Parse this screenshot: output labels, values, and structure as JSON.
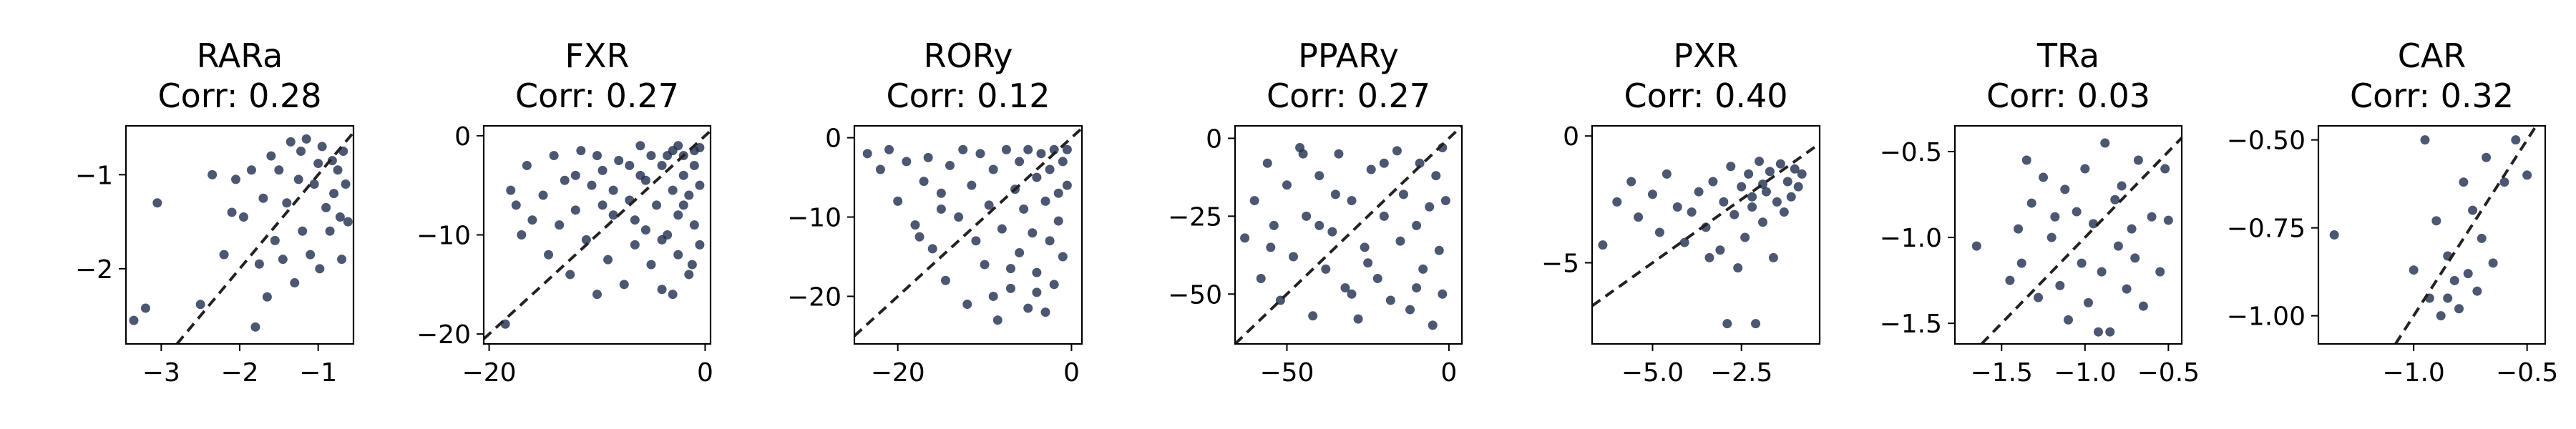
{
  "figure": {
    "background": "#ffffff",
    "point_color": "#1f2d4f",
    "diagonal_color": "#222222"
  },
  "chart_data": [
    {
      "type": "scatter",
      "title": "RARa",
      "subtitle": "Corr: 0.28",
      "xlim": [
        -3.45,
        -0.55
      ],
      "ylim": [
        -2.8,
        -0.48
      ],
      "xticks": [
        -3,
        -2,
        -1
      ],
      "yticks": [
        -2,
        -1
      ],
      "diagonal": true,
      "points": [
        [
          -3.35,
          -2.55
        ],
        [
          -3.2,
          -2.42
        ],
        [
          -3.05,
          -1.3
        ],
        [
          -2.5,
          -2.38
        ],
        [
          -2.35,
          -1.0
        ],
        [
          -2.2,
          -1.85
        ],
        [
          -2.1,
          -1.4
        ],
        [
          -2.05,
          -1.05
        ],
        [
          -1.95,
          -1.45
        ],
        [
          -1.85,
          -0.95
        ],
        [
          -1.8,
          -2.62
        ],
        [
          -1.75,
          -1.95
        ],
        [
          -1.7,
          -1.25
        ],
        [
          -1.65,
          -2.3
        ],
        [
          -1.6,
          -0.8
        ],
        [
          -1.55,
          -1.7
        ],
        [
          -1.5,
          -0.95
        ],
        [
          -1.45,
          -1.9
        ],
        [
          -1.4,
          -1.3
        ],
        [
          -1.35,
          -0.65
        ],
        [
          -1.3,
          -2.15
        ],
        [
          -1.25,
          -1.05
        ],
        [
          -1.22,
          -0.75
        ],
        [
          -1.2,
          -1.6
        ],
        [
          -1.15,
          -0.62
        ],
        [
          -1.1,
          -1.85
        ],
        [
          -1.05,
          -1.1
        ],
        [
          -1.0,
          -0.88
        ],
        [
          -0.98,
          -2.0
        ],
        [
          -0.95,
          -0.7
        ],
        [
          -0.9,
          -1.35
        ],
        [
          -0.85,
          -1.6
        ],
        [
          -0.82,
          -0.85
        ],
        [
          -0.8,
          -1.2
        ],
        [
          -0.75,
          -0.95
        ],
        [
          -0.72,
          -1.45
        ],
        [
          -0.7,
          -1.9
        ],
        [
          -0.68,
          -0.75
        ],
        [
          -0.65,
          -1.1
        ],
        [
          -0.62,
          -1.5
        ]
      ]
    },
    {
      "type": "scatter",
      "title": "FXR",
      "subtitle": "Corr: 0.27",
      "xlim": [
        -20.5,
        0.5
      ],
      "ylim": [
        -21,
        1
      ],
      "xticks": [
        -20,
        0
      ],
      "yticks": [
        -20,
        -10,
        0
      ],
      "diagonal": true,
      "points": [
        [
          -18.5,
          -19
        ],
        [
          -18,
          -5.5
        ],
        [
          -17.5,
          -7
        ],
        [
          -17,
          -10
        ],
        [
          -16.5,
          -3
        ],
        [
          -16,
          -8.5
        ],
        [
          -15,
          -6
        ],
        [
          -14.5,
          -12
        ],
        [
          -14,
          -2
        ],
        [
          -13.5,
          -9
        ],
        [
          -13,
          -4.5
        ],
        [
          -12.5,
          -14
        ],
        [
          -12,
          -7.5
        ],
        [
          -11.5,
          -1.5
        ],
        [
          -11,
          -10.5
        ],
        [
          -10.5,
          -5
        ],
        [
          -10,
          -16
        ],
        [
          -9.5,
          -3.5
        ],
        [
          -9,
          -12.5
        ],
        [
          -8.5,
          -8
        ],
        [
          -8,
          -2.5
        ],
        [
          -7.5,
          -15
        ],
        [
          -7,
          -6.5
        ],
        [
          -6.5,
          -11
        ],
        [
          -6,
          -1
        ],
        [
          -6,
          -4
        ],
        [
          -5.5,
          -9.5
        ],
        [
          -5,
          -13
        ],
        [
          -5,
          -2
        ],
        [
          -4.5,
          -7
        ],
        [
          -4,
          -15.5
        ],
        [
          -4,
          -3
        ],
        [
          -3.5,
          -10
        ],
        [
          -3,
          -5.5
        ],
        [
          -3,
          -1.5
        ],
        [
          -2.5,
          -12
        ],
        [
          -2.5,
          -8
        ],
        [
          -2,
          -4
        ],
        [
          -2,
          -2
        ],
        [
          -1.5,
          -14
        ],
        [
          -1.5,
          -6
        ],
        [
          -1,
          -9
        ],
        [
          -1,
          -3
        ],
        [
          -1,
          -1.5
        ],
        [
          -0.5,
          -11
        ],
        [
          -0.5,
          -5
        ],
        [
          -0.5,
          -1.2
        ],
        [
          -3.5,
          -2
        ],
        [
          -5.5,
          -4.5
        ],
        [
          -7,
          -3
        ],
        [
          -8.5,
          -5.5
        ],
        [
          -9.5,
          -7
        ],
        [
          -2,
          -7
        ],
        [
          -4,
          -10.5
        ],
        [
          -1.2,
          -13
        ],
        [
          -6.5,
          -8.5
        ],
        [
          -3,
          -16
        ],
        [
          -10,
          -2
        ],
        [
          -12,
          -4
        ],
        [
          -2.5,
          -1
        ]
      ]
    },
    {
      "type": "scatter",
      "title": "RORy",
      "subtitle": "Corr: 0.12",
      "xlim": [
        -25,
        1.2
      ],
      "ylim": [
        -26,
        1.5
      ],
      "xticks": [
        -20,
        0
      ],
      "yticks": [
        -20,
        -10,
        0
      ],
      "diagonal": true,
      "points": [
        [
          -23.5,
          -2
        ],
        [
          -22,
          -4
        ],
        [
          -21,
          -1.5
        ],
        [
          -20,
          -8
        ],
        [
          -19,
          -3
        ],
        [
          -18,
          -11
        ],
        [
          -17,
          -5.5
        ],
        [
          -16.5,
          -2.5
        ],
        [
          -16,
          -14
        ],
        [
          -15,
          -7
        ],
        [
          -14.5,
          -18
        ],
        [
          -14,
          -3.5
        ],
        [
          -13,
          -10
        ],
        [
          -12.5,
          -1.5
        ],
        [
          -12,
          -21
        ],
        [
          -11.5,
          -6
        ],
        [
          -11,
          -13
        ],
        [
          -10.5,
          -2
        ],
        [
          -10,
          -16
        ],
        [
          -9.5,
          -8.5
        ],
        [
          -9,
          -4
        ],
        [
          -8.5,
          -23
        ],
        [
          -8,
          -11.5
        ],
        [
          -7.5,
          -1.5
        ],
        [
          -7,
          -19
        ],
        [
          -6.5,
          -6.5
        ],
        [
          -6,
          -14.5
        ],
        [
          -6,
          -3
        ],
        [
          -5.5,
          -9
        ],
        [
          -5,
          -21.5
        ],
        [
          -5,
          -1.5
        ],
        [
          -4.5,
          -12
        ],
        [
          -4,
          -5
        ],
        [
          -4,
          -17
        ],
        [
          -3.5,
          -2
        ],
        [
          -3,
          -8
        ],
        [
          -3,
          -22
        ],
        [
          -2.5,
          -13
        ],
        [
          -2.5,
          -4
        ],
        [
          -2,
          -1.5
        ],
        [
          -2,
          -18.5
        ],
        [
          -1.5,
          -7
        ],
        [
          -1.5,
          -10.5
        ],
        [
          -1,
          -3
        ],
        [
          -1,
          -15
        ],
        [
          -0.5,
          -1.5
        ],
        [
          -0.5,
          -6
        ],
        [
          -15,
          -9
        ],
        [
          -17.5,
          -12.5
        ],
        [
          -9,
          -20
        ],
        [
          -4,
          -19.5
        ],
        [
          -7,
          -16.5
        ]
      ]
    },
    {
      "type": "scatter",
      "title": "PPARy",
      "subtitle": "Corr: 0.27",
      "xlim": [
        -66,
        4
      ],
      "ylim": [
        -66,
        4
      ],
      "xticks": [
        -50,
        0
      ],
      "yticks": [
        -50,
        -25,
        0
      ],
      "diagonal": true,
      "points": [
        [
          -63,
          -32
        ],
        [
          -60,
          -20
        ],
        [
          -58,
          -45
        ],
        [
          -56,
          -8
        ],
        [
          -54,
          -28
        ],
        [
          -52,
          -52
        ],
        [
          -50,
          -15
        ],
        [
          -48,
          -38
        ],
        [
          -46,
          -3
        ],
        [
          -44,
          -25
        ],
        [
          -42,
          -57
        ],
        [
          -40,
          -12
        ],
        [
          -38,
          -42
        ],
        [
          -36,
          -30
        ],
        [
          -34,
          -5
        ],
        [
          -32,
          -48
        ],
        [
          -30,
          -20
        ],
        [
          -28,
          -58
        ],
        [
          -26,
          -35
        ],
        [
          -24,
          -10
        ],
        [
          -22,
          -45
        ],
        [
          -20,
          -25
        ],
        [
          -18,
          -52
        ],
        [
          -16,
          -4
        ],
        [
          -15,
          -33
        ],
        [
          -14,
          -18
        ],
        [
          -12,
          -55
        ],
        [
          -10,
          -28
        ],
        [
          -9,
          -8
        ],
        [
          -8,
          -42
        ],
        [
          -6,
          -22
        ],
        [
          -5,
          -60
        ],
        [
          -4,
          -12
        ],
        [
          -3,
          -36
        ],
        [
          -2,
          -3
        ],
        [
          -2,
          -50
        ],
        [
          -1,
          -20
        ],
        [
          -45,
          -5
        ],
        [
          -35,
          -18
        ],
        [
          -25,
          -40
        ],
        [
          -55,
          -35
        ],
        [
          -30,
          -50
        ],
        [
          -20,
          -8
        ],
        [
          -10,
          -48
        ],
        [
          -40,
          -28
        ]
      ]
    },
    {
      "type": "scatter",
      "title": "PXR",
      "subtitle": "Corr: 0.40",
      "xlim": [
        -6.7,
        -0.3
      ],
      "ylim": [
        -8.2,
        0.4
      ],
      "xticks": [
        -5.0,
        -2.5
      ],
      "yticks": [
        -5,
        0
      ],
      "diagonal": true,
      "points": [
        [
          -6.4,
          -4.3
        ],
        [
          -6.0,
          -2.6
        ],
        [
          -5.6,
          -1.8
        ],
        [
          -5.4,
          -3.2
        ],
        [
          -5.0,
          -2.3
        ],
        [
          -4.8,
          -3.8
        ],
        [
          -4.6,
          -1.5
        ],
        [
          -4.3,
          -2.8
        ],
        [
          -4.1,
          -4.2
        ],
        [
          -3.9,
          -3.0
        ],
        [
          -3.7,
          -2.2
        ],
        [
          -3.5,
          -3.6
        ],
        [
          -3.3,
          -1.8
        ],
        [
          -3.1,
          -4.5
        ],
        [
          -3.0,
          -2.6
        ],
        [
          -2.9,
          -7.4
        ],
        [
          -2.8,
          -1.2
        ],
        [
          -2.7,
          -3.1
        ],
        [
          -2.5,
          -2.0
        ],
        [
          -2.4,
          -4.0
        ],
        [
          -2.3,
          -1.5
        ],
        [
          -2.2,
          -2.8
        ],
        [
          -2.1,
          -7.4
        ],
        [
          -2.0,
          -1.0
        ],
        [
          -1.9,
          -3.4
        ],
        [
          -1.8,
          -2.2
        ],
        [
          -1.7,
          -1.4
        ],
        [
          -1.6,
          -4.8
        ],
        [
          -1.5,
          -2.6
        ],
        [
          -1.4,
          -1.1
        ],
        [
          -1.3,
          -3.0
        ],
        [
          -1.2,
          -1.8
        ],
        [
          -1.1,
          -2.4
        ],
        [
          -1.0,
          -1.3
        ],
        [
          -0.9,
          -2.0
        ],
        [
          -0.8,
          -1.5
        ],
        [
          -2.6,
          -5.2
        ],
        [
          -3.4,
          -4.8
        ],
        [
          -1.9,
          -1.9
        ],
        [
          -2.2,
          -2.4
        ]
      ]
    },
    {
      "type": "scatter",
      "title": "TRa",
      "subtitle": "Corr: 0.03",
      "xlim": [
        -1.78,
        -0.42
      ],
      "ylim": [
        -1.62,
        -0.35
      ],
      "xticks": [
        -1.5,
        -1.0,
        -0.5
      ],
      "yticks": [
        -1.5,
        -1.0,
        -0.5
      ],
      "diagonal": true,
      "points": [
        [
          -1.65,
          -1.05
        ],
        [
          -1.45,
          -1.25
        ],
        [
          -1.4,
          -0.95
        ],
        [
          -1.38,
          -1.15
        ],
        [
          -1.32,
          -0.8
        ],
        [
          -1.28,
          -1.35
        ],
        [
          -1.25,
          -0.65
        ],
        [
          -1.2,
          -1.0
        ],
        [
          -1.15,
          -1.28
        ],
        [
          -1.12,
          -0.72
        ],
        [
          -1.1,
          -1.48
        ],
        [
          -1.05,
          -0.85
        ],
        [
          -1.02,
          -1.15
        ],
        [
          -1.0,
          -0.6
        ],
        [
          -0.98,
          -1.38
        ],
        [
          -0.95,
          -0.92
        ],
        [
          -0.9,
          -1.2
        ],
        [
          -0.88,
          -0.45
        ],
        [
          -0.85,
          -1.55
        ],
        [
          -0.82,
          -0.78
        ],
        [
          -0.8,
          -1.05
        ],
        [
          -0.78,
          -0.7
        ],
        [
          -0.75,
          -1.3
        ],
        [
          -0.72,
          -0.95
        ],
        [
          -0.7,
          -1.12
        ],
        [
          -0.68,
          -0.55
        ],
        [
          -0.65,
          -1.4
        ],
        [
          -0.6,
          -0.88
        ],
        [
          -0.55,
          -1.2
        ],
        [
          -0.52,
          -0.6
        ],
        [
          -0.5,
          -0.9
        ],
        [
          -1.35,
          -0.55
        ],
        [
          -0.92,
          -1.55
        ],
        [
          -1.18,
          -0.88
        ]
      ]
    },
    {
      "type": "scatter",
      "title": "CAR",
      "subtitle": "Corr: 0.32",
      "xlim": [
        -1.42,
        -0.42
      ],
      "ylim": [
        -1.08,
        -0.46
      ],
      "xticks": [
        -1.0,
        -0.5
      ],
      "yticks": [
        -1.0,
        -0.75,
        -0.5
      ],
      "diagonal": true,
      "points": [
        [
          -1.35,
          -0.77
        ],
        [
          -1.0,
          -0.87
        ],
        [
          -0.95,
          -0.5
        ],
        [
          -0.93,
          -0.95
        ],
        [
          -0.9,
          -0.73
        ],
        [
          -0.88,
          -1.0
        ],
        [
          -0.85,
          -0.83
        ],
        [
          -0.82,
          -0.9
        ],
        [
          -0.8,
          -0.98
        ],
        [
          -0.78,
          -0.62
        ],
        [
          -0.76,
          -0.88
        ],
        [
          -0.74,
          -0.7
        ],
        [
          -0.72,
          -0.93
        ],
        [
          -0.7,
          -0.78
        ],
        [
          -0.68,
          -0.55
        ],
        [
          -0.65,
          -0.85
        ],
        [
          -0.6,
          -0.62
        ],
        [
          -0.55,
          -0.5
        ],
        [
          -0.5,
          -0.6
        ],
        [
          -0.85,
          -0.95
        ]
      ]
    }
  ]
}
